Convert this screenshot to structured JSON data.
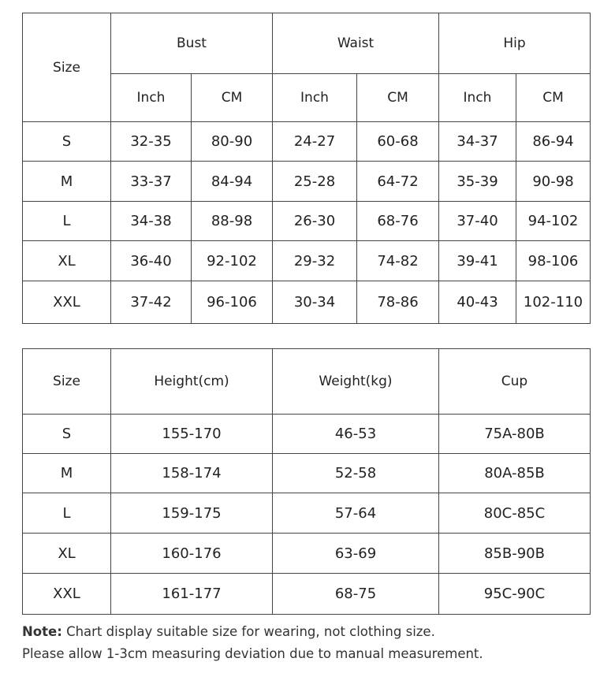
{
  "measurements_table": {
    "size_header": "Size",
    "groups": [
      "Bust",
      "Waist",
      "Hip"
    ],
    "units": [
      "Inch",
      "CM"
    ],
    "rows": [
      {
        "size": "S",
        "values": [
          "32-35",
          "80-90",
          "24-27",
          "60-68",
          "34-37",
          "86-94"
        ]
      },
      {
        "size": "M",
        "values": [
          "33-37",
          "84-94",
          "25-28",
          "64-72",
          "35-39",
          "90-98"
        ]
      },
      {
        "size": "L",
        "values": [
          "34-38",
          "88-98",
          "26-30",
          "68-76",
          "37-40",
          "94-102"
        ]
      },
      {
        "size": "XL",
        "values": [
          "36-40",
          "92-102",
          "29-32",
          "74-82",
          "39-41",
          "98-106"
        ]
      },
      {
        "size": "XXL",
        "values": [
          "37-42",
          "96-106",
          "30-34",
          "78-86",
          "40-43",
          "102-110"
        ]
      }
    ]
  },
  "body_table": {
    "headers": [
      "Size",
      "Height(cm)",
      "Weight(kg)",
      "Cup"
    ],
    "rows": [
      [
        "S",
        "155-170",
        "46-53",
        "75A-80B"
      ],
      [
        "M",
        "158-174",
        "52-58",
        "80A-85B"
      ],
      [
        "L",
        "159-175",
        "57-64",
        "80C-85C"
      ],
      [
        "XL",
        "160-176",
        "63-69",
        "85B-90B"
      ],
      [
        "XXL",
        "161-177",
        "68-75",
        "95C-90C"
      ]
    ]
  },
  "note": {
    "label": "Note:",
    "line1": "Chart display suitable size for wearing, not clothing size.",
    "line2": "Please allow 1-3cm measuring deviation due to manual measurement."
  }
}
